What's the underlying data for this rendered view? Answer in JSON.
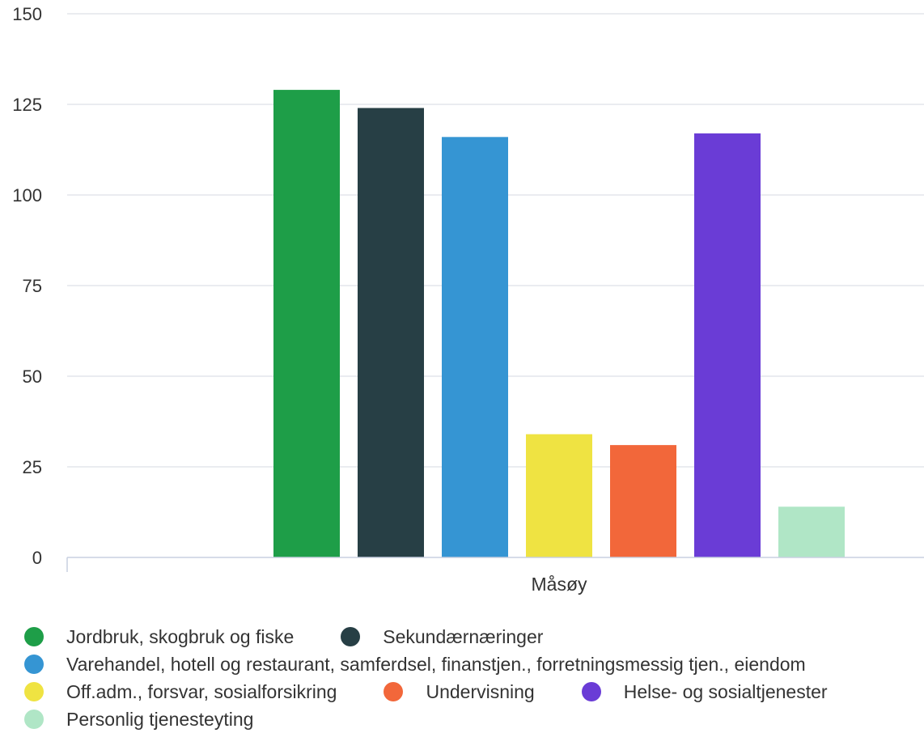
{
  "chart_data": {
    "type": "bar",
    "categories": [
      "Måsøy"
    ],
    "ylim": [
      0,
      150
    ],
    "yticks": [
      0,
      25,
      50,
      75,
      100,
      125,
      150
    ],
    "grid": true,
    "legend_position": "bottom",
    "series": [
      {
        "name": "Jordbruk, skogbruk og fiske",
        "values": [
          129
        ],
        "color": "#1e9e48"
      },
      {
        "name": "Sekundærnæringer",
        "values": [
          124
        ],
        "color": "#273f45"
      },
      {
        "name": "Varehandel, hotell og restaurant, samferdsel, finanstjen., forretningsmessig tjen., eiendom",
        "values": [
          116
        ],
        "color": "#3595d3"
      },
      {
        "name": "Off.adm., forsvar, sosialforsikring",
        "values": [
          34
        ],
        "color": "#efe342"
      },
      {
        "name": "Undervisning",
        "values": [
          31
        ],
        "color": "#f2673a"
      },
      {
        "name": "Helse- og sosialtjenester",
        "values": [
          117
        ],
        "color": "#6a3cd6"
      },
      {
        "name": "Personlig tjenesteyting",
        "values": [
          14
        ],
        "color": "#b0e6c6"
      }
    ]
  }
}
